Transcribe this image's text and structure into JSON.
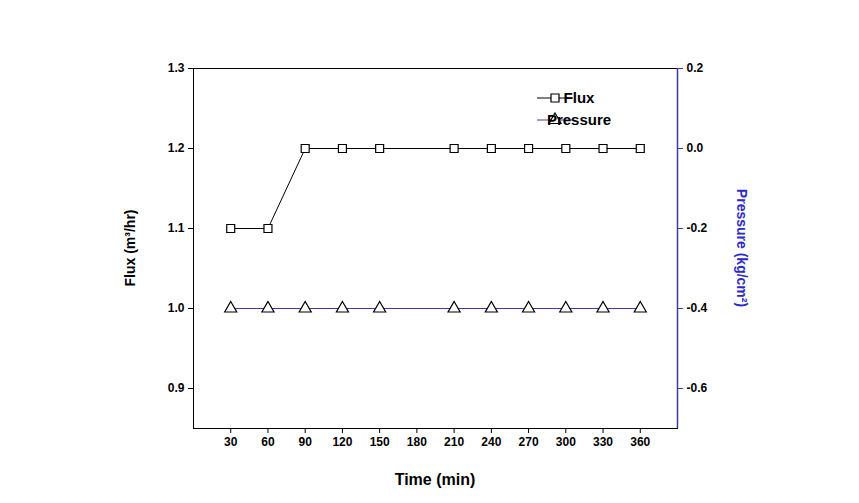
{
  "chart_data": {
    "type": "line",
    "x": [
      30,
      60,
      90,
      120,
      150,
      210,
      240,
      270,
      300,
      330,
      360
    ],
    "series": [
      {
        "name": "Flux",
        "color": "#000000",
        "marker": "square",
        "values": [
          1.1,
          1.1,
          1.2,
          1.2,
          1.2,
          1.2,
          1.2,
          1.2,
          1.2,
          1.2,
          1.2
        ]
      },
      {
        "name": "Pressure",
        "color": "#3a3aa8",
        "marker": "triangle",
        "axis": "y2",
        "values": [
          -0.4,
          -0.4,
          -0.4,
          -0.4,
          -0.4,
          -0.4,
          -0.4,
          -0.4,
          -0.4,
          -0.4,
          -0.4
        ]
      }
    ],
    "x_label": "Time (min)",
    "y_label": "Flux (m³/hr)",
    "y2_label": "Pressure (kg/cm²)",
    "xlim": [
      0,
      390
    ],
    "xticks": [
      30,
      60,
      90,
      120,
      150,
      180,
      210,
      240,
      270,
      300,
      330,
      360
    ],
    "ylim": [
      0.85,
      1.3
    ],
    "yticks": [
      0.9,
      {
        "value": 1,
        "label": "1.0"
      },
      1.1,
      1.2,
      1.3
    ],
    "y2lim": [
      -0.7,
      0.2
    ],
    "y2ticks": [
      -0.6,
      -0.4,
      -0.2,
      {
        "value": 0,
        "label": "0.0"
      },
      0.2
    ],
    "legend": "upper right"
  }
}
